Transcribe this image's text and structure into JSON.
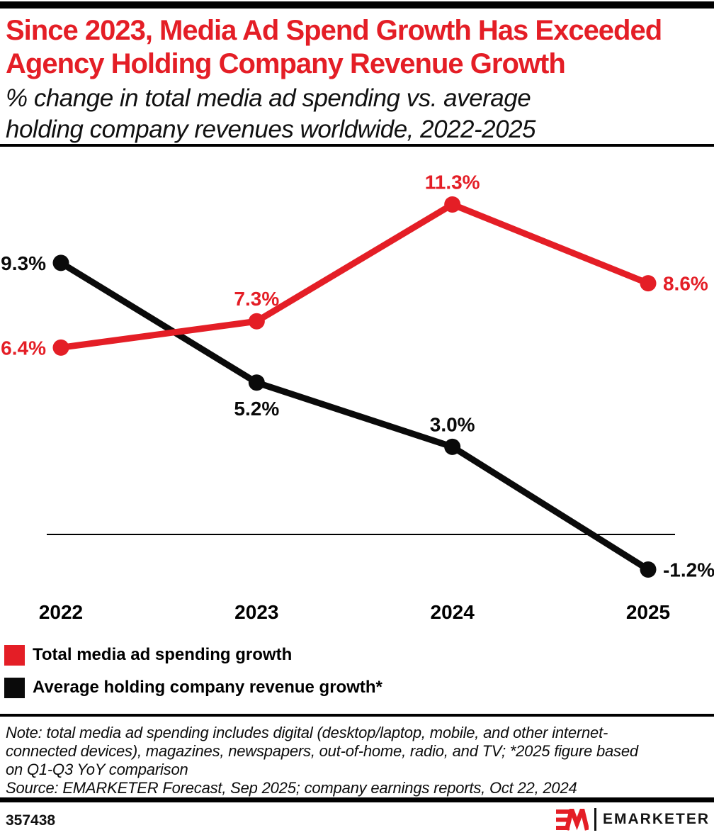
{
  "header": {
    "title_lines": [
      "Since 2023, Media Ad Spend Growth Has Exceeded",
      "Agency Holding Company Revenue Growth"
    ],
    "subtitle_lines": [
      "% change in total media ad spending vs. average",
      "holding company revenues worldwide, 2022-2025"
    ]
  },
  "colors": {
    "accent_red": "#E41E26",
    "black": "#0A0A0A"
  },
  "chart_data": {
    "type": "line",
    "categories": [
      "2022",
      "2023",
      "2024",
      "2025"
    ],
    "series": [
      {
        "name": "Total media ad spending growth",
        "color_key": "accent_red",
        "values": [
          6.4,
          7.3,
          11.3,
          8.6
        ],
        "labels": [
          "6.4%",
          "7.3%",
          "11.3%",
          "8.6%"
        ]
      },
      {
        "name": "Average holding company revenue growth*",
        "color_key": "black",
        "values": [
          9.3,
          5.2,
          3.0,
          -1.2
        ],
        "labels": [
          "9.3%",
          "5.2%",
          "3.0%",
          "-1.2%"
        ]
      }
    ],
    "ylim": [
      -2.6,
      13.0
    ],
    "grid": false,
    "zero_line": true,
    "legend_position": "bottom-left"
  },
  "notes": {
    "note_lines": [
      "Note: total media ad spending includes digital (desktop/laptop, mobile, and other internet-",
      "connected devices), magazines, newspapers, out-of-home, radio, and TV; *2025 figure based",
      "on Q1-Q3 YoY comparison"
    ],
    "source_line": "Source: EMARKETER Forecast, Sep 2025; company earnings reports, Oct 22, 2024"
  },
  "footer": {
    "chart_id": "357438",
    "brand_wordmark": "EMARKETER"
  }
}
